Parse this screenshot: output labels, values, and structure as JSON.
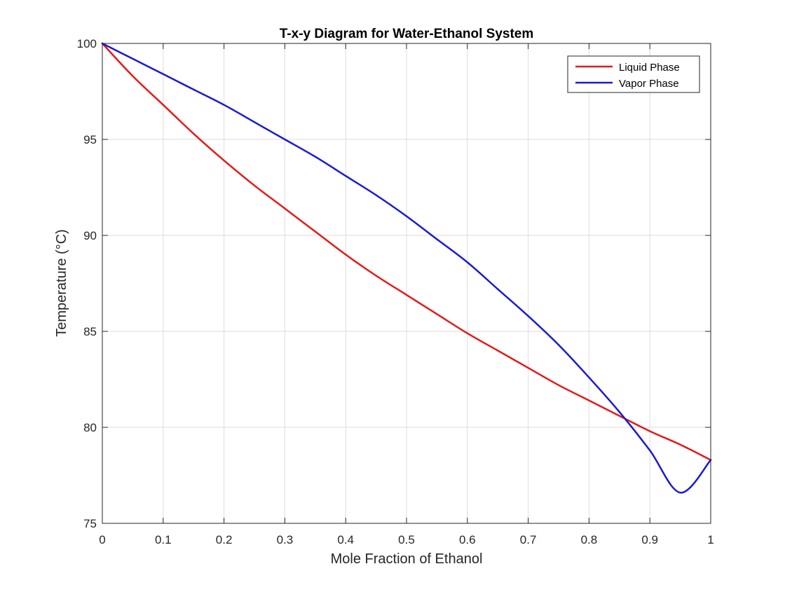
{
  "chart_data": {
    "type": "line",
    "title": "T-x-y Diagram for Water-Ethanol System",
    "xlabel": "Mole Fraction of Ethanol",
    "ylabel": "Temperature (°C)",
    "xlim": [
      0,
      1
    ],
    "ylim": [
      75,
      100
    ],
    "xticks": [
      "0",
      "0.1",
      "0.2",
      "0.3",
      "0.4",
      "0.5",
      "0.6",
      "0.7",
      "0.8",
      "0.9",
      "1"
    ],
    "yticks": [
      "75",
      "80",
      "85",
      "90",
      "95",
      "100"
    ],
    "grid": true,
    "legend_location": "top-right",
    "x": [
      0,
      0.05,
      0.1,
      0.15,
      0.2,
      0.25,
      0.3,
      0.35,
      0.4,
      0.45,
      0.5,
      0.55,
      0.6,
      0.65,
      0.7,
      0.75,
      0.8,
      0.85,
      0.9,
      0.95,
      1
    ],
    "series": [
      {
        "name": "Liquid Phase",
        "color": "#e41a1a",
        "values": [
          100,
          98.3,
          96.8,
          95.3,
          93.9,
          92.6,
          91.4,
          90.2,
          89.0,
          87.9,
          86.9,
          85.9,
          84.9,
          84.0,
          83.1,
          82.2,
          81.4,
          80.6,
          79.8,
          79.1,
          78.3
        ]
      },
      {
        "name": "Vapor Phase",
        "color": "#1a1ad6",
        "values": [
          100,
          99.2,
          98.4,
          97.6,
          96.8,
          95.9,
          95.0,
          94.1,
          93.1,
          92.1,
          91.0,
          89.8,
          88.6,
          87.2,
          85.8,
          84.3,
          82.6,
          80.8,
          78.8,
          76.6,
          78.3
        ]
      }
    ]
  }
}
